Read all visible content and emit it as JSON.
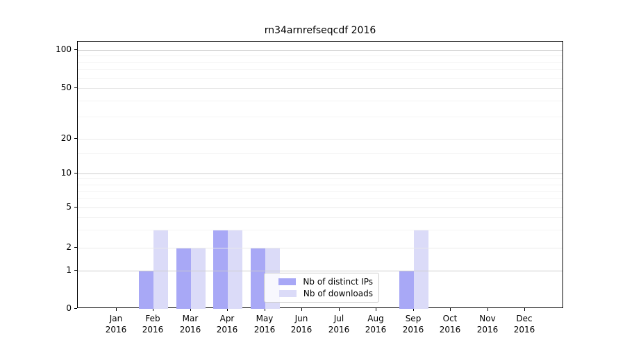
{
  "chart_data": {
    "type": "bar",
    "title": "rn34arnrefseqcdf 2016",
    "categories": [
      "Jan",
      "Feb",
      "Mar",
      "Apr",
      "May",
      "Jun",
      "Jul",
      "Aug",
      "Sep",
      "Oct",
      "Nov",
      "Dec"
    ],
    "x_labels": [
      {
        "month": "Jan",
        "year": "2016"
      },
      {
        "month": "Feb",
        "year": "2016"
      },
      {
        "month": "Mar",
        "year": "2016"
      },
      {
        "month": "Apr",
        "year": "2016"
      },
      {
        "month": "May",
        "year": "2016"
      },
      {
        "month": "Jun",
        "year": "2016"
      },
      {
        "month": "Jul",
        "year": "2016"
      },
      {
        "month": "Aug",
        "year": "2016"
      },
      {
        "month": "Sep",
        "year": "2016"
      },
      {
        "month": "Oct",
        "year": "2016"
      },
      {
        "month": "Nov",
        "year": "2016"
      },
      {
        "month": "Dec",
        "year": "2016"
      }
    ],
    "series": [
      {
        "name": "Nb of distinct IPs",
        "color": "#a8a8f6",
        "values": [
          0,
          1,
          2,
          3,
          2,
          0,
          0,
          0,
          1,
          0,
          0,
          0
        ]
      },
      {
        "name": "Nb of downloads",
        "color": "#dbdbf8",
        "values": [
          0,
          3,
          2,
          3,
          2,
          0,
          0,
          0,
          3,
          0,
          0,
          0
        ]
      }
    ],
    "y_ticks": [
      0,
      1,
      2,
      5,
      10,
      20,
      50,
      100
    ],
    "y_minor_ticks": [
      3,
      4,
      6,
      7,
      8,
      9,
      15,
      30,
      40,
      60,
      70,
      80,
      90
    ],
    "ylim": [
      0,
      100
    ],
    "xlabel": "",
    "ylabel": "",
    "grid": "horizontal",
    "legend_position": "lower center"
  },
  "colors": {
    "grid_major": "#cccccc",
    "grid_labeled_minor": "#e9e9e9",
    "grid_minor": "#f3f3f3",
    "axis": "#000000"
  }
}
